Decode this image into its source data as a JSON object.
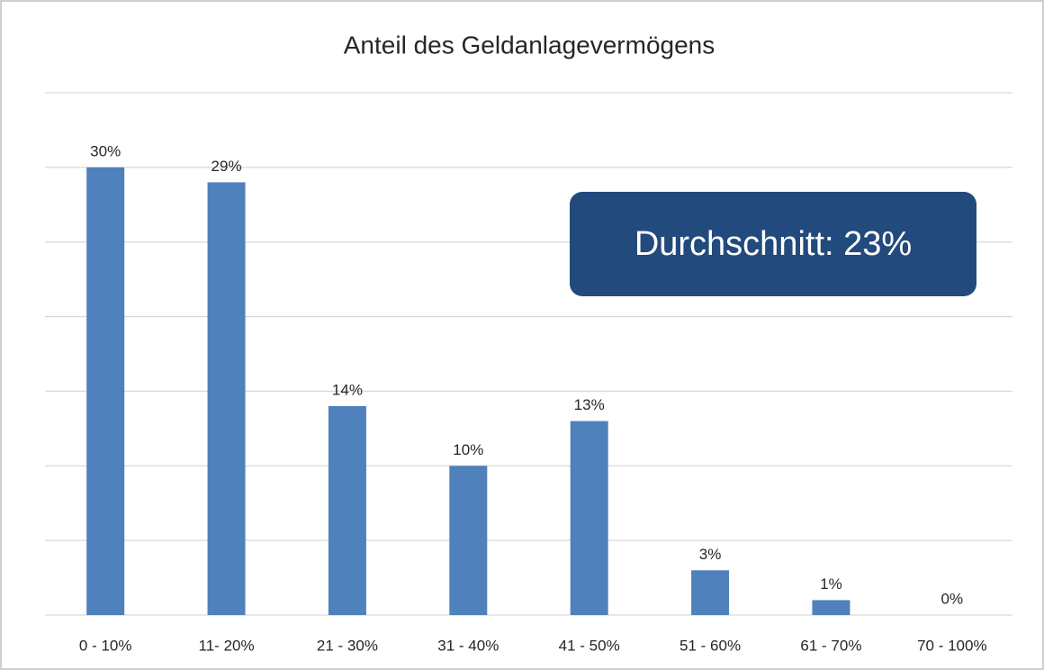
{
  "chart_data": {
    "type": "bar",
    "title": "Anteil des Geldanlagevermögens",
    "categories": [
      "0 - 10%",
      "11- 20%",
      "21 - 30%",
      "31 - 40%",
      "41 - 50%",
      "51 - 60%",
      "61 - 70%",
      "70 - 100%"
    ],
    "values": [
      30,
      29,
      14,
      10,
      13,
      3,
      1,
      0
    ],
    "value_labels": [
      "30%",
      "29%",
      "14%",
      "10%",
      "13%",
      "3%",
      "1%",
      "0%"
    ],
    "color": "#4f81bd",
    "ylim": [
      0,
      35
    ],
    "yticks": [
      0,
      5,
      10,
      15,
      20,
      25,
      30,
      35
    ],
    "grid": true,
    "annotation": "Durchschnitt: 23%"
  }
}
